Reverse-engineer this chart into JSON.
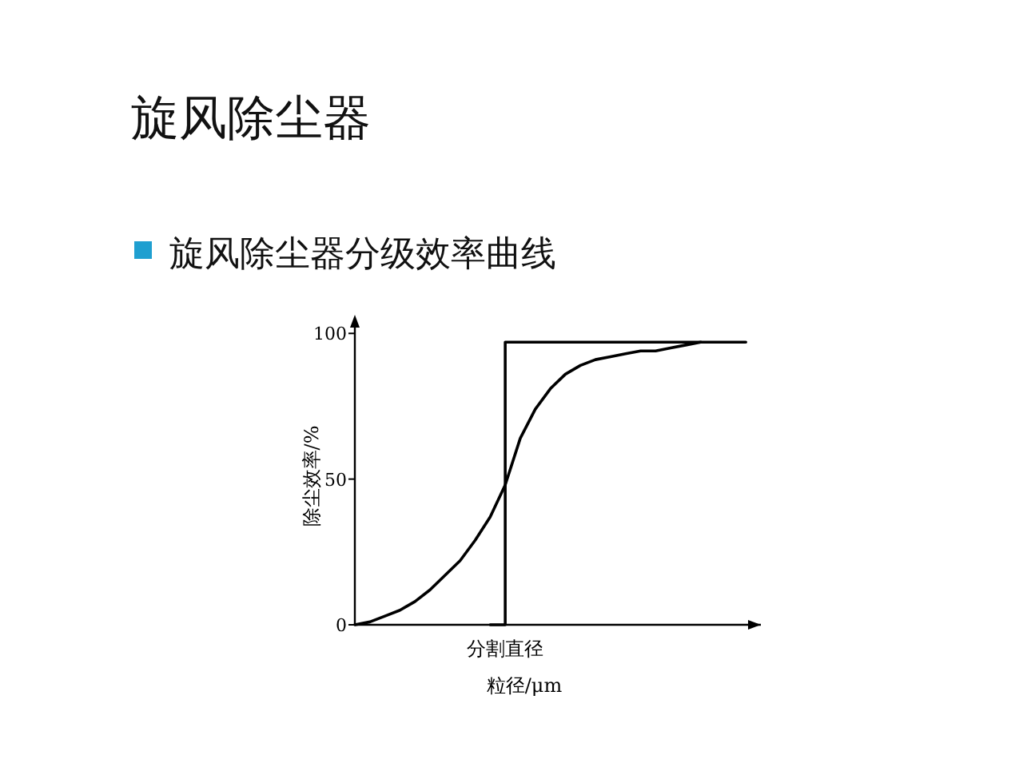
{
  "chart_data": {
    "type": "line",
    "title": "旋风除尘器",
    "subtitle": "旋风除尘器分级效率曲线",
    "xlabel": "粒径/μm",
    "ylabel": "除尘效率/%",
    "categories": [
      null,
      null,
      null,
      null,
      null,
      null,
      null,
      null,
      null,
      null,
      "分割直径",
      null,
      null,
      null,
      null,
      null,
      null,
      null,
      null,
      null,
      null,
      null,
      null,
      null,
      null,
      null,
      null
    ],
    "ylim": [
      0,
      102
    ],
    "yticks": [
      0,
      50,
      100
    ],
    "series": [
      {
        "type": "step",
        "color": "#000000",
        "values": [
          null,
          null,
          null,
          null,
          null,
          null,
          null,
          null,
          null,
          0,
          97,
          97,
          97,
          97,
          97,
          97,
          97,
          97,
          97,
          97,
          97,
          97,
          97,
          97,
          97,
          97,
          97
        ]
      },
      {
        "color": "#000000",
        "values": [
          0,
          1,
          3,
          5,
          8,
          12,
          17,
          22,
          29,
          37,
          48,
          64,
          74,
          81,
          86,
          89,
          91,
          92,
          93,
          94,
          94,
          95,
          96,
          97,
          null,
          null,
          null
        ]
      }
    ]
  }
}
